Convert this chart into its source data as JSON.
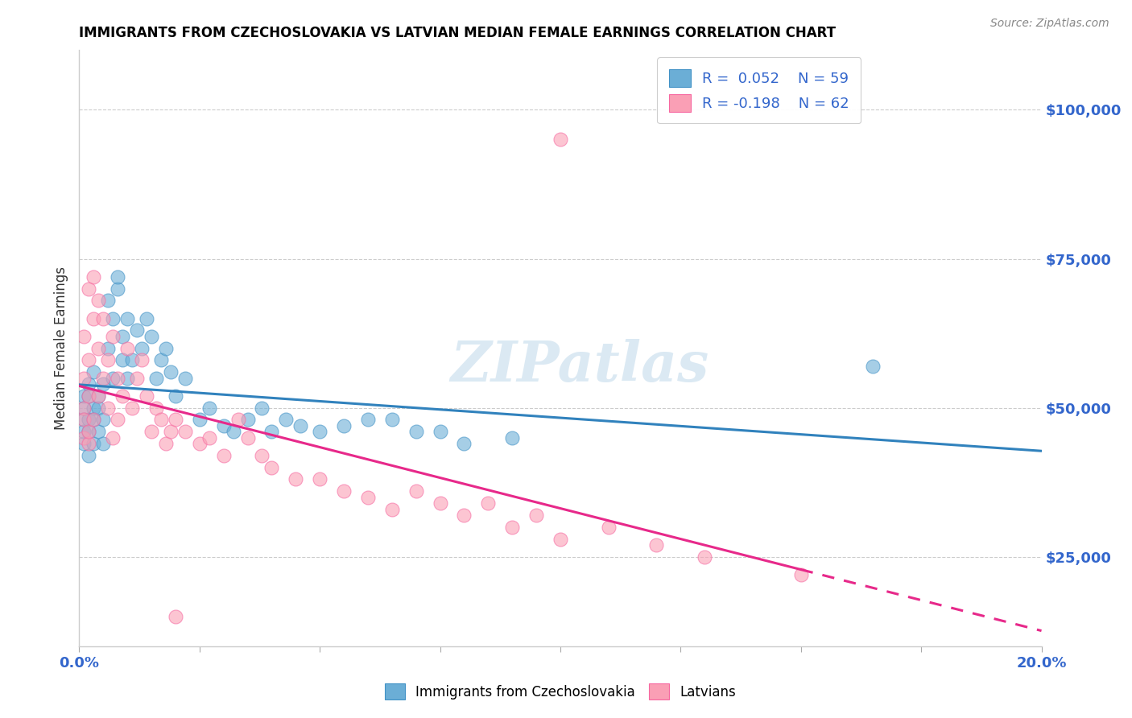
{
  "title": "IMMIGRANTS FROM CZECHOSLOVAKIA VS LATVIAN MEDIAN FEMALE EARNINGS CORRELATION CHART",
  "source": "Source: ZipAtlas.com",
  "ylabel": "Median Female Earnings",
  "xlim": [
    0.0,
    0.2
  ],
  "ylim": [
    10000,
    110000
  ],
  "yticks": [
    25000,
    50000,
    75000,
    100000
  ],
  "ytick_labels": [
    "$25,000",
    "$50,000",
    "$75,000",
    "$100,000"
  ],
  "xticks": [
    0.0,
    0.025,
    0.05,
    0.075,
    0.1,
    0.125,
    0.15,
    0.175,
    0.2
  ],
  "xtick_labels": [
    "0.0%",
    "",
    "",
    "",
    "",
    "",
    "",
    "",
    "20.0%"
  ],
  "color_blue": "#6baed6",
  "color_blue_edge": "#4292c6",
  "color_pink": "#fa9fb5",
  "color_pink_edge": "#f768a1",
  "color_blue_line": "#3182bd",
  "color_pink_line": "#e7298a",
  "color_label": "#3366cc",
  "watermark": "ZIPatlas",
  "blue_scatter_x": [
    0.001,
    0.001,
    0.001,
    0.001,
    0.001,
    0.002,
    0.002,
    0.002,
    0.002,
    0.002,
    0.003,
    0.003,
    0.003,
    0.003,
    0.004,
    0.004,
    0.004,
    0.005,
    0.005,
    0.005,
    0.006,
    0.006,
    0.007,
    0.007,
    0.008,
    0.008,
    0.009,
    0.009,
    0.01,
    0.01,
    0.011,
    0.012,
    0.013,
    0.014,
    0.015,
    0.016,
    0.017,
    0.018,
    0.019,
    0.02,
    0.022,
    0.025,
    0.027,
    0.03,
    0.032,
    0.035,
    0.038,
    0.04,
    0.043,
    0.046,
    0.05,
    0.055,
    0.06,
    0.065,
    0.07,
    0.075,
    0.08,
    0.09,
    0.165
  ],
  "blue_scatter_y": [
    48000,
    52000,
    44000,
    50000,
    46000,
    54000,
    48000,
    42000,
    52000,
    46000,
    50000,
    44000,
    56000,
    48000,
    46000,
    52000,
    50000,
    44000,
    48000,
    54000,
    68000,
    60000,
    65000,
    55000,
    70000,
    72000,
    62000,
    58000,
    65000,
    55000,
    58000,
    63000,
    60000,
    65000,
    62000,
    55000,
    58000,
    60000,
    56000,
    52000,
    55000,
    48000,
    50000,
    47000,
    46000,
    48000,
    50000,
    46000,
    48000,
    47000,
    46000,
    47000,
    48000,
    48000,
    46000,
    46000,
    44000,
    45000,
    57000
  ],
  "pink_scatter_x": [
    0.001,
    0.001,
    0.001,
    0.001,
    0.001,
    0.002,
    0.002,
    0.002,
    0.002,
    0.002,
    0.003,
    0.003,
    0.003,
    0.004,
    0.004,
    0.004,
    0.005,
    0.005,
    0.006,
    0.006,
    0.007,
    0.007,
    0.008,
    0.008,
    0.009,
    0.01,
    0.011,
    0.012,
    0.013,
    0.014,
    0.015,
    0.016,
    0.017,
    0.018,
    0.019,
    0.02,
    0.022,
    0.025,
    0.027,
    0.03,
    0.033,
    0.035,
    0.038,
    0.04,
    0.045,
    0.05,
    0.055,
    0.06,
    0.065,
    0.07,
    0.075,
    0.08,
    0.085,
    0.09,
    0.095,
    0.1,
    0.11,
    0.12,
    0.13,
    0.15,
    0.1,
    0.02
  ],
  "pink_scatter_y": [
    50000,
    55000,
    48000,
    62000,
    45000,
    52000,
    58000,
    44000,
    70000,
    46000,
    65000,
    48000,
    72000,
    60000,
    52000,
    68000,
    55000,
    65000,
    58000,
    50000,
    62000,
    45000,
    55000,
    48000,
    52000,
    60000,
    50000,
    55000,
    58000,
    52000,
    46000,
    50000,
    48000,
    44000,
    46000,
    48000,
    46000,
    44000,
    45000,
    42000,
    48000,
    45000,
    42000,
    40000,
    38000,
    38000,
    36000,
    35000,
    33000,
    36000,
    34000,
    32000,
    34000,
    30000,
    32000,
    28000,
    30000,
    27000,
    25000,
    22000,
    95000,
    15000
  ]
}
